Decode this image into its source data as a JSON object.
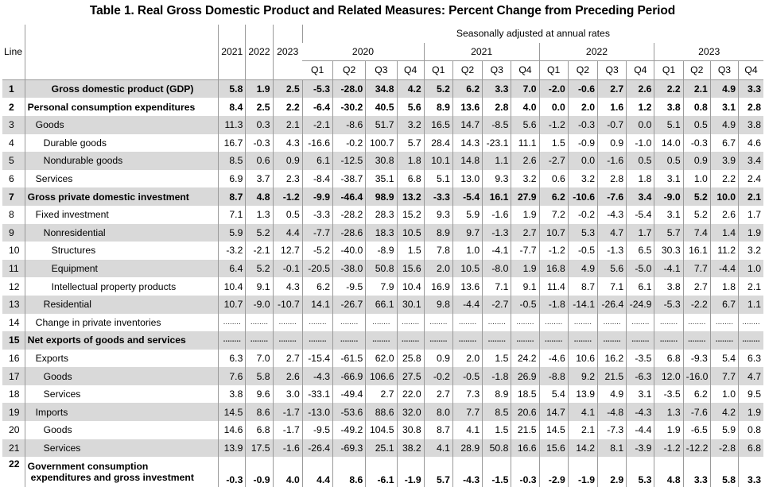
{
  "title": "Table 1. Real Gross Domestic Product and Related Measures: Percent Change from Preceding Period",
  "header": {
    "line": "Line",
    "annual_years": [
      "2021",
      "2022",
      "2023"
    ],
    "seasonal_note": "Seasonally adjusted at annual rates",
    "quarter_years": [
      "2020",
      "2021",
      "2022",
      "2023"
    ],
    "quarters": [
      "Q1",
      "Q2",
      "Q3",
      "Q4"
    ]
  },
  "rows": [
    {
      "line": "1",
      "label": "Gross domestic product (GDP)",
      "bold": true,
      "grey": true,
      "indent": 3,
      "values": [
        "5.8",
        "1.9",
        "2.5",
        "-5.3",
        "-28.0",
        "34.8",
        "4.2",
        "5.2",
        "6.2",
        "3.3",
        "7.0",
        "-2.0",
        "-0.6",
        "2.7",
        "2.6",
        "2.2",
        "2.1",
        "4.9",
        "3.3"
      ]
    },
    {
      "line": "2",
      "label": "Personal consumption expenditures",
      "bold": true,
      "grey": false,
      "indent": 0,
      "values": [
        "8.4",
        "2.5",
        "2.2",
        "-6.4",
        "-30.2",
        "40.5",
        "5.6",
        "8.9",
        "13.6",
        "2.8",
        "4.0",
        "0.0",
        "2.0",
        "1.6",
        "1.2",
        "3.8",
        "0.8",
        "3.1",
        "2.8"
      ]
    },
    {
      "line": "3",
      "label": "Goods",
      "bold": false,
      "grey": true,
      "indent": 1,
      "values": [
        "11.3",
        "0.3",
        "2.1",
        "-2.1",
        "-8.6",
        "51.7",
        "3.2",
        "16.5",
        "14.7",
        "-8.5",
        "5.6",
        "-1.2",
        "-0.3",
        "-0.7",
        "0.0",
        "5.1",
        "0.5",
        "4.9",
        "3.8"
      ]
    },
    {
      "line": "4",
      "label": "Durable goods",
      "bold": false,
      "grey": false,
      "indent": 2,
      "values": [
        "16.7",
        "-0.3",
        "4.3",
        "-16.6",
        "-0.2",
        "100.7",
        "5.7",
        "28.4",
        "14.3",
        "-23.1",
        "11.1",
        "1.5",
        "-0.9",
        "0.9",
        "-1.0",
        "14.0",
        "-0.3",
        "6.7",
        "4.6"
      ]
    },
    {
      "line": "5",
      "label": "Nondurable goods",
      "bold": false,
      "grey": true,
      "indent": 2,
      "values": [
        "8.5",
        "0.6",
        "0.9",
        "6.1",
        "-12.5",
        "30.8",
        "1.8",
        "10.1",
        "14.8",
        "1.1",
        "2.6",
        "-2.7",
        "0.0",
        "-1.6",
        "0.5",
        "0.5",
        "0.9",
        "3.9",
        "3.4"
      ]
    },
    {
      "line": "6",
      "label": "Services",
      "bold": false,
      "grey": false,
      "indent": 1,
      "values": [
        "6.9",
        "3.7",
        "2.3",
        "-8.4",
        "-38.7",
        "35.1",
        "6.8",
        "5.1",
        "13.0",
        "9.3",
        "3.2",
        "0.6",
        "3.2",
        "2.8",
        "1.8",
        "3.1",
        "1.0",
        "2.2",
        "2.4"
      ]
    },
    {
      "line": "7",
      "label": "Gross private domestic investment",
      "bold": true,
      "grey": true,
      "indent": 0,
      "values": [
        "8.7",
        "4.8",
        "-1.2",
        "-9.9",
        "-46.4",
        "98.9",
        "13.2",
        "-3.3",
        "-5.4",
        "16.1",
        "27.9",
        "6.2",
        "-10.6",
        "-7.6",
        "3.4",
        "-9.0",
        "5.2",
        "10.0",
        "2.1"
      ]
    },
    {
      "line": "8",
      "label": "Fixed investment",
      "bold": false,
      "grey": false,
      "indent": 1,
      "values": [
        "7.1",
        "1.3",
        "0.5",
        "-3.3",
        "-28.2",
        "28.3",
        "15.2",
        "9.3",
        "5.9",
        "-1.6",
        "1.9",
        "7.2",
        "-0.2",
        "-4.3",
        "-5.4",
        "3.1",
        "5.2",
        "2.6",
        "1.7"
      ]
    },
    {
      "line": "9",
      "label": "Nonresidential",
      "bold": false,
      "grey": true,
      "indent": 2,
      "values": [
        "5.9",
        "5.2",
        "4.4",
        "-7.7",
        "-28.6",
        "18.3",
        "10.5",
        "8.9",
        "9.7",
        "-1.3",
        "2.7",
        "10.7",
        "5.3",
        "4.7",
        "1.7",
        "5.7",
        "7.4",
        "1.4",
        "1.9"
      ]
    },
    {
      "line": "10",
      "label": "Structures",
      "bold": false,
      "grey": false,
      "indent": 3,
      "values": [
        "-3.2",
        "-2.1",
        "12.7",
        "-5.2",
        "-40.0",
        "-8.9",
        "1.5",
        "7.8",
        "1.0",
        "-4.1",
        "-7.7",
        "-1.2",
        "-0.5",
        "-1.3",
        "6.5",
        "30.3",
        "16.1",
        "11.2",
        "3.2"
      ]
    },
    {
      "line": "11",
      "label": "Equipment",
      "bold": false,
      "grey": true,
      "indent": 3,
      "values": [
        "6.4",
        "5.2",
        "-0.1",
        "-20.5",
        "-38.0",
        "50.8",
        "15.6",
        "2.0",
        "10.5",
        "-8.0",
        "1.9",
        "16.8",
        "4.9",
        "5.6",
        "-5.0",
        "-4.1",
        "7.7",
        "-4.4",
        "1.0"
      ]
    },
    {
      "line": "12",
      "label": "Intellectual property products",
      "bold": false,
      "grey": false,
      "indent": 3,
      "values": [
        "10.4",
        "9.1",
        "4.3",
        "6.2",
        "-9.5",
        "7.9",
        "10.4",
        "16.9",
        "13.6",
        "7.1",
        "9.1",
        "11.4",
        "8.7",
        "7.1",
        "6.1",
        "3.8",
        "2.7",
        "1.8",
        "2.1"
      ]
    },
    {
      "line": "13",
      "label": "Residential",
      "bold": false,
      "grey": true,
      "indent": 2,
      "values": [
        "10.7",
        "-9.0",
        "-10.7",
        "14.1",
        "-26.7",
        "66.1",
        "30.1",
        "9.8",
        "-4.4",
        "-2.7",
        "-0.5",
        "-1.8",
        "-14.1",
        "-26.4",
        "-24.9",
        "-5.3",
        "-2.2",
        "6.7",
        "1.1"
      ]
    },
    {
      "line": "14",
      "label": "Change in private inventories",
      "bold": false,
      "grey": false,
      "indent": 1,
      "dots": true,
      "values": []
    },
    {
      "line": "15",
      "label": "Net exports of goods and services",
      "bold": true,
      "grey": true,
      "indent": 0,
      "dots": true,
      "values": []
    },
    {
      "line": "16",
      "label": "Exports",
      "bold": false,
      "grey": false,
      "indent": 1,
      "values": [
        "6.3",
        "7.0",
        "2.7",
        "-15.4",
        "-61.5",
        "62.0",
        "25.8",
        "0.9",
        "2.0",
        "1.5",
        "24.2",
        "-4.6",
        "10.6",
        "16.2",
        "-3.5",
        "6.8",
        "-9.3",
        "5.4",
        "6.3"
      ]
    },
    {
      "line": "17",
      "label": "Goods",
      "bold": false,
      "grey": true,
      "indent": 2,
      "values": [
        "7.6",
        "5.8",
        "2.6",
        "-4.3",
        "-66.9",
        "106.6",
        "27.5",
        "-0.2",
        "-0.5",
        "-1.8",
        "26.9",
        "-8.8",
        "9.2",
        "21.5",
        "-6.3",
        "12.0",
        "-16.0",
        "7.7",
        "4.7"
      ]
    },
    {
      "line": "18",
      "label": "Services",
      "bold": false,
      "grey": false,
      "indent": 2,
      "values": [
        "3.8",
        "9.6",
        "3.0",
        "-33.1",
        "-49.4",
        "2.7",
        "22.0",
        "2.7",
        "7.3",
        "8.9",
        "18.5",
        "5.4",
        "13.9",
        "4.9",
        "3.1",
        "-3.5",
        "6.2",
        "1.0",
        "9.5"
      ]
    },
    {
      "line": "19",
      "label": "Imports",
      "bold": false,
      "grey": true,
      "indent": 1,
      "values": [
        "14.5",
        "8.6",
        "-1.7",
        "-13.0",
        "-53.6",
        "88.6",
        "32.0",
        "8.0",
        "7.7",
        "8.5",
        "20.6",
        "14.7",
        "4.1",
        "-4.8",
        "-4.3",
        "1.3",
        "-7.6",
        "4.2",
        "1.9"
      ]
    },
    {
      "line": "20",
      "label": "Goods",
      "bold": false,
      "grey": false,
      "indent": 2,
      "values": [
        "14.6",
        "6.8",
        "-1.7",
        "-9.5",
        "-49.2",
        "104.5",
        "30.8",
        "8.7",
        "4.1",
        "1.5",
        "21.5",
        "14.5",
        "2.1",
        "-7.3",
        "-4.4",
        "1.9",
        "-6.5",
        "5.9",
        "0.8"
      ]
    },
    {
      "line": "21",
      "label": "Services",
      "bold": false,
      "grey": true,
      "indent": 2,
      "values": [
        "13.9",
        "17.5",
        "-1.6",
        "-26.4",
        "-69.3",
        "25.1",
        "38.2",
        "4.1",
        "28.9",
        "50.8",
        "16.6",
        "15.6",
        "14.2",
        "8.1",
        "-3.9",
        "-1.2",
        "-12.2",
        "-2.8",
        "6.8"
      ]
    },
    {
      "line": "22",
      "label": "Government consumption",
      "label2": "expenditures and gross investment",
      "bold": true,
      "grey": false,
      "indent": 0,
      "twoline": true,
      "values": [
        "-0.3",
        "-0.9",
        "4.0",
        "4.4",
        "8.6",
        "-6.1",
        "-1.9",
        "5.7",
        "-4.3",
        "-1.5",
        "-0.3",
        "-2.9",
        "-1.9",
        "2.9",
        "5.3",
        "4.8",
        "3.3",
        "5.8",
        "3.3"
      ]
    }
  ]
}
